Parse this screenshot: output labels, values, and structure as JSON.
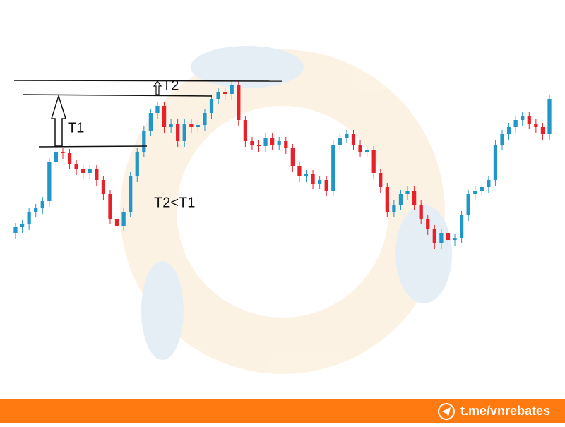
{
  "chart_data": {
    "type": "candlestick",
    "open": [
      235,
      243,
      247,
      265,
      270,
      280,
      335,
      350,
      348,
      333,
      325,
      320,
      325,
      310,
      290,
      255,
      245,
      265,
      315,
      350,
      380,
      405,
      415,
      385,
      390,
      365,
      390,
      385,
      388,
      405,
      425,
      435,
      432,
      445,
      395,
      365,
      360,
      358,
      370,
      360,
      365,
      355,
      330,
      315,
      318,
      305,
      310,
      295,
      360,
      370,
      375,
      360,
      350,
      352,
      320,
      300,
      265,
      275,
      290,
      295,
      275,
      255,
      240,
      220,
      235,
      225,
      228,
      260,
      290,
      295,
      300,
      310,
      360,
      375,
      385,
      395,
      400,
      390,
      385,
      375
    ],
    "high": [
      249,
      253,
      271,
      276,
      286,
      341,
      356,
      356,
      354,
      339,
      331,
      331,
      331,
      316,
      296,
      261,
      271,
      321,
      356,
      386,
      411,
      421,
      421,
      396,
      396,
      396,
      396,
      394,
      411,
      431,
      441,
      441,
      451,
      451,
      401,
      371,
      366,
      376,
      376,
      371,
      371,
      361,
      336,
      324,
      324,
      316,
      316,
      366,
      376,
      381,
      381,
      366,
      358,
      358,
      326,
      306,
      281,
      296,
      301,
      301,
      281,
      261,
      246,
      241,
      241,
      234,
      266,
      296,
      301,
      306,
      316,
      366,
      381,
      391,
      401,
      406,
      406,
      396,
      391,
      431
    ],
    "low": [
      227,
      235,
      239,
      257,
      262,
      272,
      327,
      340,
      325,
      317,
      312,
      312,
      302,
      282,
      247,
      237,
      237,
      257,
      307,
      342,
      372,
      397,
      377,
      377,
      357,
      357,
      377,
      377,
      380,
      397,
      417,
      424,
      424,
      387,
      357,
      352,
      350,
      350,
      352,
      352,
      347,
      322,
      307,
      307,
      297,
      297,
      287,
      287,
      352,
      362,
      352,
      342,
      342,
      312,
      292,
      257,
      257,
      267,
      282,
      267,
      247,
      232,
      212,
      212,
      217,
      217,
      220,
      252,
      282,
      287,
      292,
      302,
      352,
      367,
      377,
      387,
      382,
      377,
      367,
      367
    ],
    "close": [
      243,
      247,
      265,
      270,
      280,
      335,
      350,
      348,
      333,
      325,
      320,
      325,
      310,
      290,
      255,
      245,
      265,
      315,
      350,
      380,
      405,
      415,
      385,
      390,
      365,
      390,
      385,
      388,
      405,
      425,
      435,
      432,
      445,
      395,
      365,
      360,
      358,
      370,
      360,
      365,
      355,
      330,
      315,
      318,
      305,
      310,
      295,
      360,
      370,
      375,
      360,
      350,
      352,
      320,
      300,
      265,
      275,
      290,
      295,
      275,
      255,
      240,
      220,
      235,
      225,
      228,
      260,
      290,
      295,
      300,
      310,
      360,
      375,
      385,
      395,
      400,
      390,
      385,
      375,
      425
    ],
    "ylim": [
      0,
      565
    ],
    "up_color": "#2196c9",
    "down_color": "#e8202a",
    "annotations": [
      "T1",
      "T2",
      "T2<T1"
    ]
  },
  "footer": {
    "text": "t.me/vnrebates"
  }
}
